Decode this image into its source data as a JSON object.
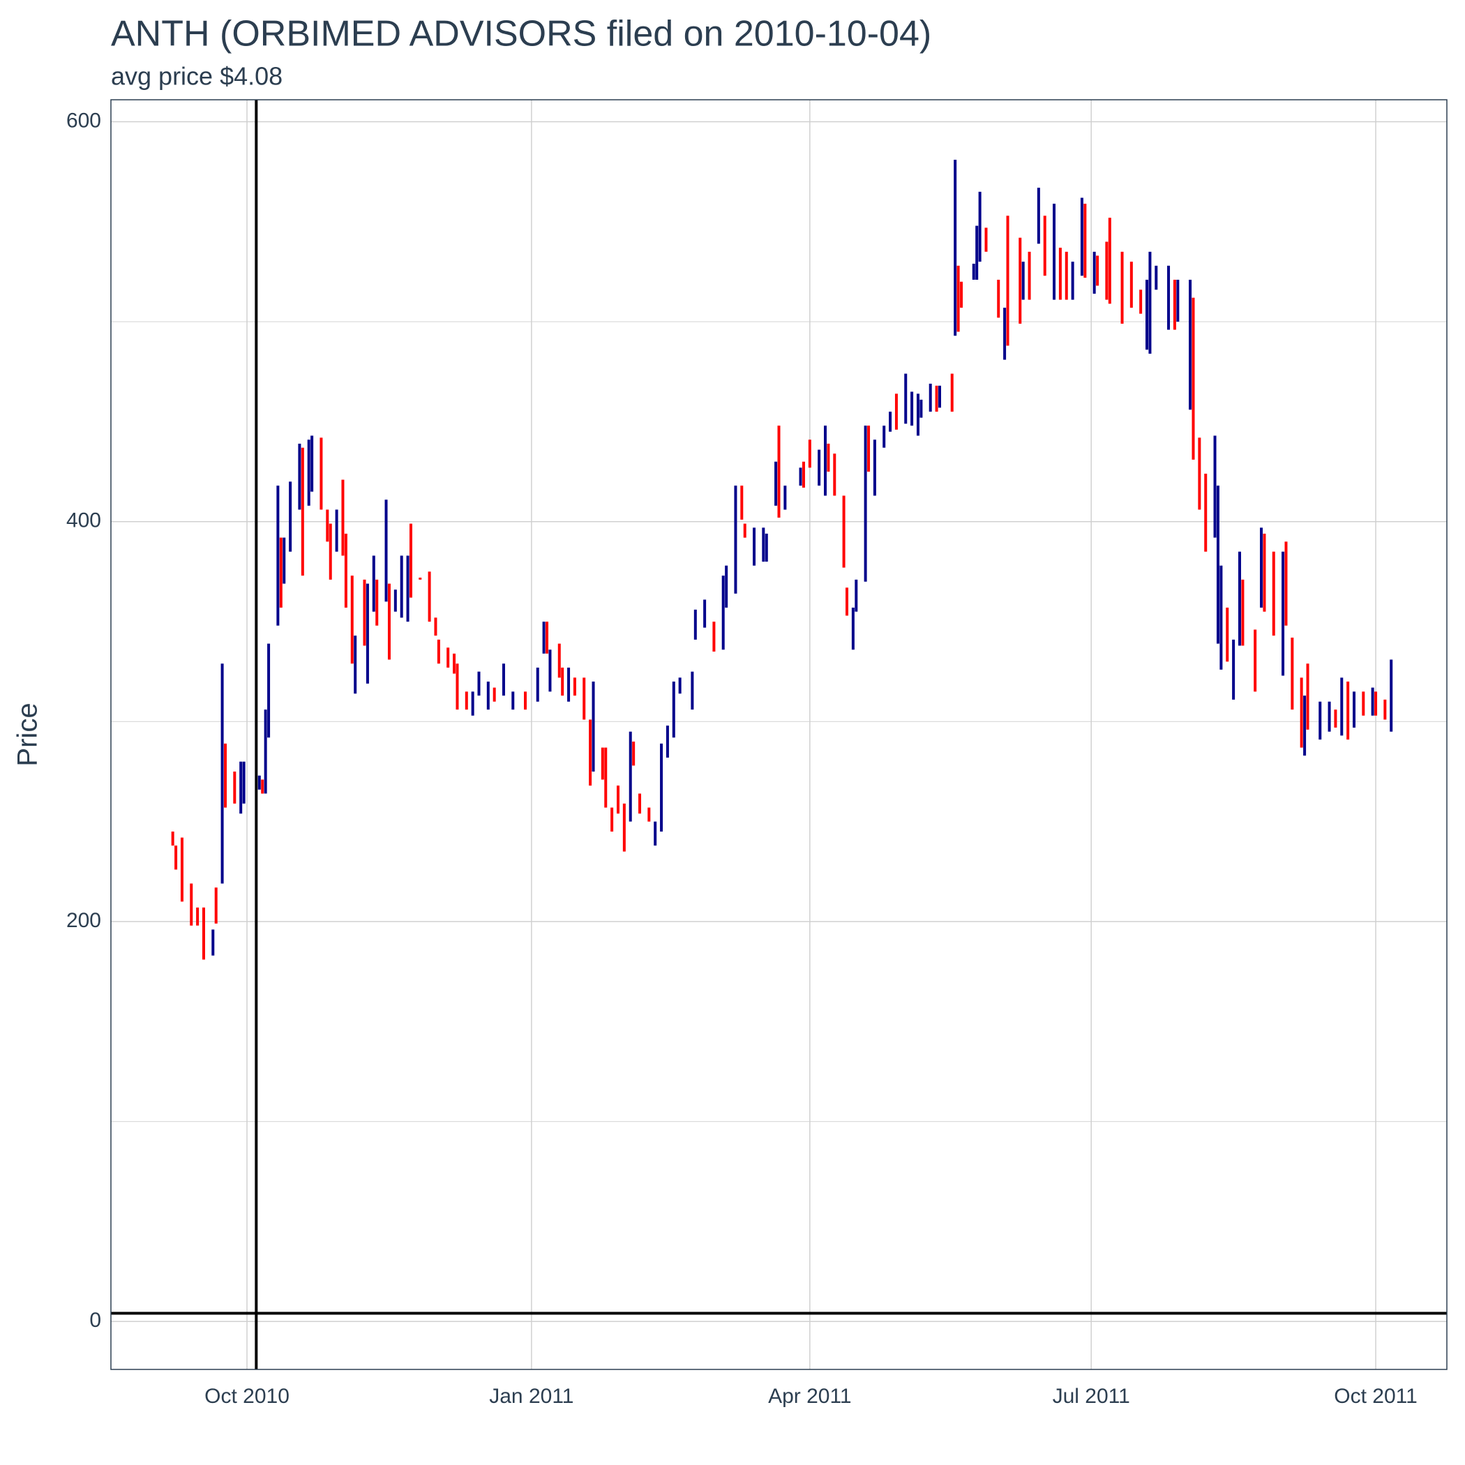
{
  "chart_data": {
    "type": "range-bar",
    "title": "ANTH (ORBIMED ADVISORS filed on 2010-10-04)",
    "subtitle": "avg price $4.08",
    "y_label": "Price",
    "xlim": [
      "2010-08-18",
      "2011-10-24"
    ],
    "xticks": [
      {
        "value": "2010-10-01",
        "label": "Oct 2010"
      },
      {
        "value": "2011-01-01",
        "label": "Jan 2011"
      },
      {
        "value": "2011-04-01",
        "label": "Apr 2011"
      },
      {
        "value": "2011-07-01",
        "label": "Jul 2011"
      },
      {
        "value": "2011-10-01",
        "label": "Oct 2011"
      }
    ],
    "ylim": [
      -24,
      611
    ],
    "yticks": [
      0,
      200,
      400,
      600
    ],
    "yminorticks": [
      100,
      300,
      500
    ],
    "grid": true,
    "hline": 4.08,
    "vline": "2010-10-04",
    "series": [
      {
        "color": "#ff0000",
        "x": [
          "2010-09-07",
          "2010-09-08",
          "2010-09-10",
          "2010-09-13",
          "2010-09-15",
          "2010-09-17",
          "2010-09-21",
          "2010-09-24",
          "2010-09-27",
          "2010-10-06",
          "2010-10-12",
          "2010-10-19",
          "2010-10-25",
          "2010-10-27",
          "2010-10-28",
          "2010-11-01",
          "2010-11-02",
          "2010-11-04",
          "2010-11-08",
          "2010-11-12",
          "2010-11-16",
          "2010-11-23",
          "2010-11-26",
          "2010-11-29",
          "2010-12-01",
          "2010-12-02",
          "2010-12-05",
          "2010-12-07",
          "2010-12-08",
          "2010-12-11",
          "2010-12-20",
          "2010-12-30",
          "2011-01-06",
          "2011-01-10",
          "2011-01-11",
          "2011-01-15",
          "2011-01-18",
          "2011-01-20",
          "2011-01-24",
          "2011-01-25",
          "2011-01-27",
          "2011-01-29",
          "2011-01-31",
          "2011-02-03",
          "2011-02-05",
          "2011-02-08",
          "2011-03-01",
          "2011-03-10",
          "2011-03-11",
          "2011-03-22",
          "2011-03-30",
          "2011-04-01",
          "2011-04-07",
          "2011-04-09",
          "2011-04-12",
          "2011-04-13",
          "2011-04-20",
          "2011-04-29",
          "2011-05-12",
          "2011-05-17",
          "2011-05-19",
          "2011-05-20",
          "2011-05-28",
          "2011-06-01",
          "2011-06-04",
          "2011-06-08",
          "2011-06-11",
          "2011-06-16",
          "2011-06-21",
          "2011-06-23",
          "2011-06-29",
          "2011-07-03",
          "2011-07-06",
          "2011-07-07",
          "2011-07-11",
          "2011-07-14",
          "2011-07-17",
          "2011-07-28",
          "2011-08-03",
          "2011-08-05",
          "2011-08-07",
          "2011-08-14",
          "2011-08-19",
          "2011-08-23",
          "2011-08-26",
          "2011-08-29",
          "2011-09-02",
          "2011-09-04",
          "2011-09-07",
          "2011-09-09",
          "2011-09-18",
          "2011-09-22",
          "2011-09-27",
          "2011-10-01",
          "2011-10-04"
        ],
        "high": [
          245,
          238,
          242,
          219,
          207,
          207,
          217,
          289,
          275,
          271,
          392,
          437,
          442,
          406,
          399,
          421,
          394,
          373,
          371,
          371,
          369,
          399,
          372,
          375,
          352,
          341,
          337,
          334,
          329,
          315,
          317,
          315,
          350,
          339,
          327,
          322,
          322,
          301,
          287,
          287,
          257,
          268,
          259,
          290,
          264,
          257,
          350,
          418,
          399,
          448,
          430,
          441,
          439,
          434,
          413,
          367,
          448,
          464,
          468,
          474,
          528,
          520,
          547,
          521,
          553,
          542,
          535,
          553,
          537,
          535,
          559,
          533,
          540,
          552,
          535,
          530,
          516,
          521,
          512,
          442,
          424,
          357,
          371,
          346,
          394,
          385,
          390,
          342,
          322,
          329,
          306,
          320,
          315,
          315,
          311
        ],
        "low": [
          238,
          226,
          210,
          198,
          198,
          181,
          199,
          257,
          259,
          264,
          357,
          373,
          406,
          390,
          371,
          383,
          357,
          329,
          338,
          348,
          331,
          362,
          371,
          350,
          343,
          329,
          327,
          324,
          306,
          306,
          310,
          306,
          334,
          322,
          313,
          313,
          301,
          268,
          271,
          257,
          245,
          254,
          235,
          278,
          254,
          250,
          335,
          401,
          392,
          402,
          417,
          427,
          425,
          413,
          377,
          353,
          425,
          446,
          455,
          455,
          495,
          507,
          535,
          502,
          488,
          499,
          511,
          523,
          511,
          511,
          522,
          518,
          511,
          509,
          499,
          507,
          504,
          496,
          431,
          406,
          385,
          330,
          338,
          315,
          355,
          343,
          348,
          306,
          287,
          296,
          297,
          291,
          303,
          303,
          301
        ]
      },
      {
        "color": "#00008b",
        "x": [
          "2010-09-20",
          "2010-09-23",
          "2010-09-29",
          "2010-09-30",
          "2010-10-05",
          "2010-10-07",
          "2010-10-08",
          "2010-10-11",
          "2010-10-13",
          "2010-10-15",
          "2010-10-18",
          "2010-10-21",
          "2010-10-22",
          "2010-10-30",
          "2010-11-05",
          "2010-11-09",
          "2010-11-11",
          "2010-11-15",
          "2010-11-18",
          "2010-11-20",
          "2010-11-22",
          "2010-12-13",
          "2010-12-15",
          "2010-12-18",
          "2010-12-23",
          "2010-12-26",
          "2011-01-03",
          "2011-01-05",
          "2011-01-07",
          "2011-01-13",
          "2011-01-21",
          "2011-02-02",
          "2011-02-10",
          "2011-02-12",
          "2011-02-14",
          "2011-02-16",
          "2011-02-18",
          "2011-02-22",
          "2011-02-23",
          "2011-02-26",
          "2011-03-04",
          "2011-03-05",
          "2011-03-08",
          "2011-03-14",
          "2011-03-17",
          "2011-03-18",
          "2011-03-21",
          "2011-03-24",
          "2011-03-29",
          "2011-04-04",
          "2011-04-06",
          "2011-04-15",
          "2011-04-16",
          "2011-04-19",
          "2011-04-22",
          "2011-04-25",
          "2011-04-27",
          "2011-05-02",
          "2011-05-04",
          "2011-05-06",
          "2011-05-07",
          "2011-05-10",
          "2011-05-13",
          "2011-05-18",
          "2011-05-24",
          "2011-05-25",
          "2011-05-26",
          "2011-06-03",
          "2011-06-09",
          "2011-06-14",
          "2011-06-19",
          "2011-06-25",
          "2011-06-28",
          "2011-07-02",
          "2011-07-19",
          "2011-07-20",
          "2011-07-22",
          "2011-07-26",
          "2011-07-29",
          "2011-08-02",
          "2011-08-10",
          "2011-08-11",
          "2011-08-12",
          "2011-08-16",
          "2011-08-18",
          "2011-08-25",
          "2011-09-01",
          "2011-09-08",
          "2011-09-13",
          "2011-09-16",
          "2011-09-20",
          "2011-09-24",
          "2011-09-30",
          "2011-10-06"
        ],
        "high": [
          196,
          329,
          280,
          280,
          273,
          306,
          339,
          418,
          392,
          420,
          439,
          441,
          443,
          406,
          343,
          369,
          383,
          411,
          366,
          383,
          383,
          315,
          325,
          320,
          329,
          315,
          327,
          350,
          336,
          327,
          320,
          295,
          250,
          289,
          298,
          320,
          322,
          325,
          356,
          361,
          373,
          378,
          418,
          397,
          397,
          394,
          430,
          418,
          427,
          436,
          448,
          357,
          371,
          448,
          441,
          448,
          455,
          474,
          465,
          464,
          461,
          469,
          468,
          581,
          529,
          548,
          565,
          507,
          530,
          567,
          559,
          530,
          562,
          535,
          521,
          535,
          528,
          528,
          521,
          521,
          443,
          418,
          378,
          341,
          385,
          397,
          385,
          313,
          310,
          310,
          322,
          315,
          317,
          331
        ],
        "low": [
          183,
          219,
          254,
          259,
          266,
          264,
          292,
          348,
          369,
          385,
          406,
          408,
          415,
          385,
          314,
          319,
          355,
          360,
          355,
          352,
          350,
          303,
          313,
          306,
          313,
          306,
          310,
          334,
          315,
          310,
          275,
          250,
          238,
          245,
          282,
          292,
          314,
          306,
          341,
          347,
          336,
          357,
          364,
          378,
          380,
          380,
          408,
          406,
          418,
          418,
          413,
          336,
          355,
          370,
          413,
          437,
          445,
          449,
          448,
          443,
          452,
          455,
          457,
          493,
          521,
          521,
          530,
          481,
          511,
          539,
          511,
          511,
          523,
          514,
          486,
          484,
          516,
          496,
          500,
          456,
          392,
          339,
          326,
          311,
          338,
          357,
          323,
          283,
          291,
          295,
          293,
          297,
          303,
          295
        ]
      }
    ]
  }
}
